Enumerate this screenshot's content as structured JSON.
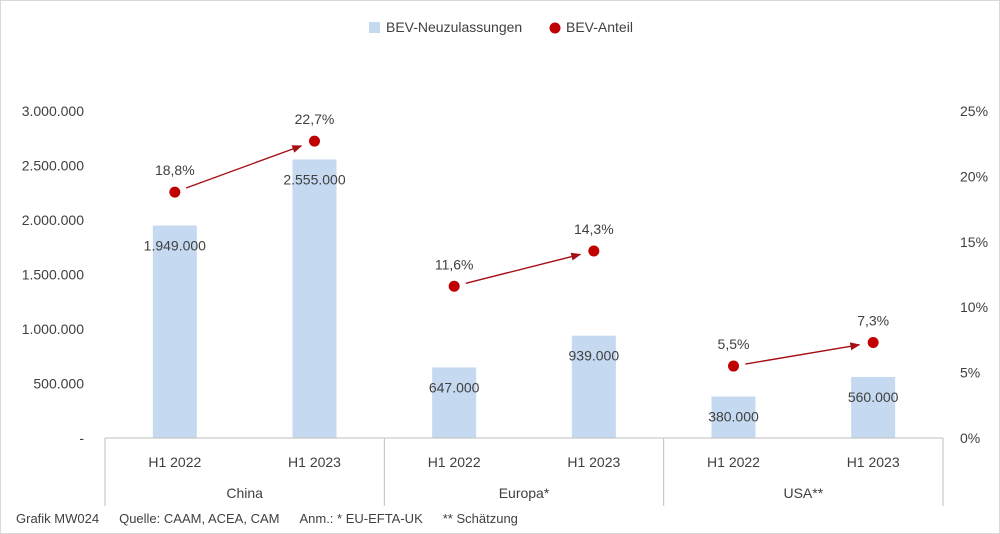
{
  "chart_data": {
    "type": "bar",
    "groups": [
      "China",
      "Europa*",
      "USA**"
    ],
    "categories": [
      "H1 2022",
      "H1 2023",
      "H1 2022",
      "H1 2023",
      "H1 2022",
      "H1 2023"
    ],
    "series": [
      {
        "name": "BEV-Neuzulassungen",
        "kind": "bar",
        "axis": "left",
        "color": "#c5d9f1",
        "values": [
          1949000,
          2555000,
          647000,
          939000,
          380000,
          560000
        ],
        "labels": [
          "1.949.000",
          "2.555.000",
          "647.000",
          "939.000",
          "380.000",
          "560.000"
        ]
      },
      {
        "name": "BEV-Anteil",
        "kind": "scatter",
        "axis": "right",
        "color": "#c00000",
        "values": [
          18.8,
          22.7,
          11.6,
          14.3,
          5.5,
          7.3
        ],
        "labels": [
          "18,8%",
          "22,7%",
          "11,6%",
          "14,3%",
          "5,5%",
          "7,3%"
        ]
      }
    ],
    "arrows": [
      [
        0,
        1
      ],
      [
        2,
        3
      ],
      [
        4,
        5
      ]
    ],
    "ylim": [
      0,
      3000000
    ],
    "y2lim": [
      0,
      25
    ],
    "yticks": [
      "-",
      "500.000",
      "1.000.000",
      "1.500.000",
      "2.000.000",
      "2.500.000",
      "3.000.000"
    ],
    "y2ticks": [
      "0%",
      "5%",
      "10%",
      "15%",
      "20%",
      "25%"
    ],
    "legend_position": "top-center",
    "grid": false
  },
  "footer": {
    "chart_id": "Grafik MW024",
    "source": "Quelle: CAAM, ACEA, CAM",
    "note": "Anm.: * EU-EFTA-UK",
    "note2": "** Schätzung"
  }
}
